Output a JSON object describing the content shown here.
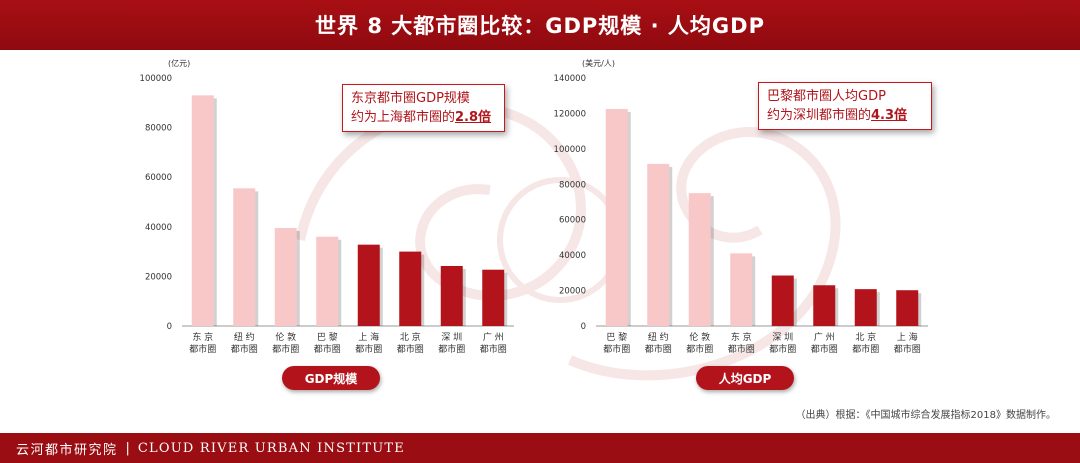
{
  "header": {
    "title": "世界 8 大都市圈比较：GDP规模 · 人均GDP"
  },
  "colors": {
    "light_bar": "#f8c7c7",
    "dark_bar": "#b3131a",
    "brand_red": "#9a0d12"
  },
  "left_callout": {
    "line1": "东京都市圈GDP规模",
    "line2_pre": "约为上海都市圈的",
    "line2_highlight": "2.8倍"
  },
  "right_callout": {
    "line1": "巴黎都市圈人均GDP",
    "line2_pre": "约为深圳都市圈的",
    "line2_highlight": "4.3倍"
  },
  "left_pill": "GDP规模",
  "right_pill": "人均GDP",
  "source": "（出典）根据：《中国城市综合发展指标2018》数据制作。",
  "footer": {
    "brand_cn": "云河都市研究院",
    "brand_en": "CLOUD RIVER URBAN INSTITUTE"
  },
  "chart_data": [
    {
      "type": "bar",
      "ylabel": "(亿元)",
      "ylim": [
        0,
        100000
      ],
      "yticks": [
        "0",
        "20000",
        "40000",
        "60000",
        "80000",
        "100000"
      ],
      "grid": false,
      "categories": [
        [
          "东 京",
          "都市圈"
        ],
        [
          "纽 约",
          "都市圈"
        ],
        [
          "伦 敦",
          "都市圈"
        ],
        [
          "巴 黎",
          "都市圈"
        ],
        [
          "上 海",
          "都市圈"
        ],
        [
          "北 京",
          "都市圈"
        ],
        [
          "深 圳",
          "都市圈"
        ],
        [
          "广 州",
          "都市圈"
        ]
      ],
      "values": [
        93000,
        55500,
        39500,
        36000,
        32800,
        30000,
        24200,
        22700
      ],
      "highlight": [
        false,
        false,
        false,
        false,
        true,
        true,
        true,
        true
      ]
    },
    {
      "type": "bar",
      "ylabel": "(美元/人)",
      "ylim": [
        0,
        140000
      ],
      "yticks": [
        "0",
        "20000",
        "40000",
        "60000",
        "80000",
        "100000",
        "120000",
        "140000"
      ],
      "grid": false,
      "categories": [
        [
          "巴 黎",
          "都市圈"
        ],
        [
          "纽 约",
          "都市圈"
        ],
        [
          "伦 敦",
          "都市圈"
        ],
        [
          "东 京",
          "都市圈"
        ],
        [
          "深 圳",
          "都市圈"
        ],
        [
          "广 州",
          "都市圈"
        ],
        [
          "北 京",
          "都市圈"
        ],
        [
          "上 海",
          "都市圈"
        ]
      ],
      "values": [
        122500,
        91500,
        75000,
        41000,
        28500,
        23000,
        20800,
        20200
      ],
      "highlight": [
        false,
        false,
        false,
        false,
        true,
        true,
        true,
        true
      ]
    }
  ]
}
